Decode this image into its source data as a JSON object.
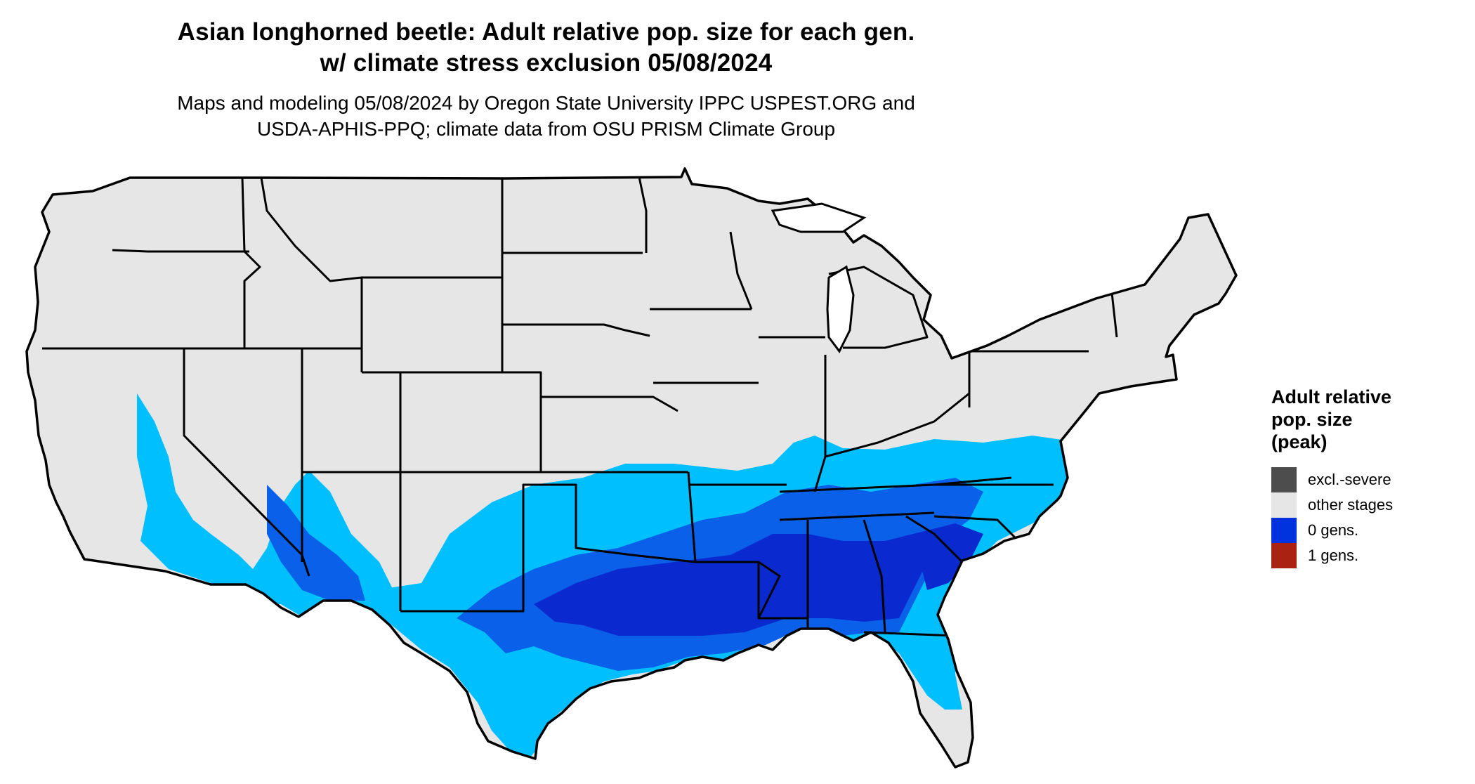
{
  "header": {
    "title_line1": "Asian longhorned beetle: Adult relative pop. size for each gen.",
    "title_line2": "w/ climate stress exclusion 05/08/2024",
    "subtitle_line1": "Maps and modeling 05/08/2024 by Oregon State University IPPC USPEST.ORG and",
    "subtitle_line2": "USDA-APHIS-PPQ; climate data from OSU PRISM Climate Group"
  },
  "map": {
    "region": "Contiguous United States",
    "colors": {
      "land": "#e6e6e6",
      "border": "#000000",
      "zone_light": "#00bfff",
      "zone_mid": "#0a60e8",
      "zone_dark": "#0a2ad0"
    }
  },
  "legend": {
    "title_line1": "Adult relative",
    "title_line2": "pop. size",
    "title_line3": "(peak)",
    "items": [
      {
        "label": "excl.-severe",
        "color": "#4d4d4d"
      },
      {
        "label": "other stages",
        "color": "#e6e6e6"
      },
      {
        "label": "0 gens.",
        "color": "#0033dd"
      },
      {
        "label": "1 gens.",
        "color": "#aa2211"
      }
    ]
  }
}
